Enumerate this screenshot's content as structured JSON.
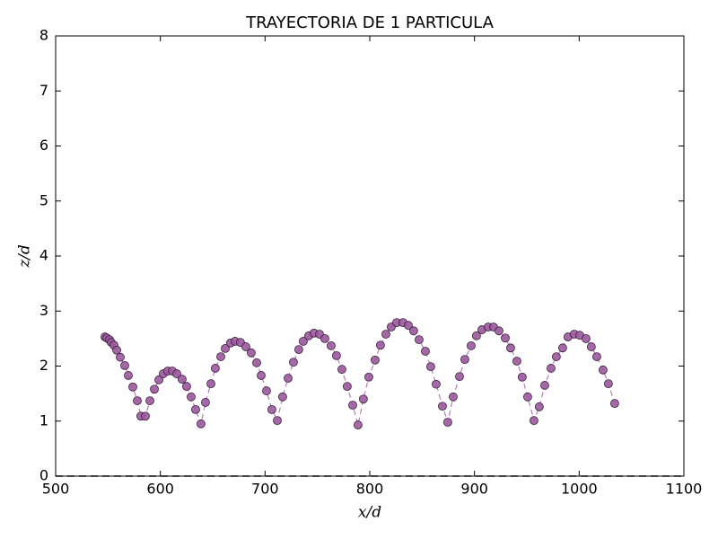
{
  "chart_data": {
    "type": "scatter",
    "title": "TRAYECTORIA DE 1 PARTICULA",
    "x_label": "x/d",
    "y_label": "z/d",
    "xlim": [
      500,
      1100
    ],
    "xticks": [
      500,
      600,
      700,
      800,
      900,
      1000,
      1100
    ],
    "ylim": [
      0,
      8
    ],
    "yticks": [
      0,
      1,
      2,
      3,
      4,
      5,
      6,
      7,
      8
    ],
    "hline": 0,
    "color": "#9c5a9e",
    "edge_color": "#3a1f3c",
    "line_color": "#b37fb5",
    "x": [
      547.1,
      548.9,
      551.4,
      553.1,
      555.7,
      558.3,
      561.7,
      566.0,
      569.4,
      573.7,
      578.0,
      581.4,
      585.7,
      590.0,
      594.3,
      598.6,
      602.8,
      607.1,
      611.4,
      615.7,
      620.8,
      625.1,
      629.4,
      633.7,
      638.8,
      643.1,
      648.3,
      652.5,
      657.7,
      662.0,
      667.1,
      671.4,
      676.5,
      681.7,
      686.8,
      692.0,
      696.3,
      701.4,
      706.5,
      711.7,
      716.8,
      722.0,
      727.1,
      732.2,
      736.5,
      741.7,
      746.8,
      752.0,
      757.1,
      763.1,
      768.2,
      773.4,
      778.5,
      783.7,
      788.8,
      793.9,
      799.1,
      805.1,
      810.2,
      815.4,
      820.5,
      825.7,
      831.7,
      836.8,
      841.9,
      847.1,
      853.1,
      858.2,
      863.4,
      869.4,
      874.5,
      879.7,
      885.7,
      890.8,
      896.8,
      901.9,
      907.1,
      913.1,
      918.2,
      923.4,
      929.4,
      934.5,
      940.5,
      945.6,
      950.8,
      956.8,
      961.9,
      967.1,
      973.1,
      978.2,
      984.2,
      989.3,
      995.3,
      1000.5,
      1006.5,
      1011.6,
      1016.8,
      1022.8,
      1027.9,
      1033.9
    ],
    "values": [
      2.53,
      2.51,
      2.48,
      2.43,
      2.38,
      2.29,
      2.16,
      2.01,
      1.83,
      1.62,
      1.37,
      1.09,
      1.09,
      1.37,
      1.58,
      1.75,
      1.86,
      1.91,
      1.91,
      1.86,
      1.76,
      1.63,
      1.44,
      1.21,
      0.95,
      1.34,
      1.68,
      1.96,
      2.17,
      2.32,
      2.42,
      2.45,
      2.43,
      2.35,
      2.24,
      2.06,
      1.83,
      1.55,
      1.21,
      1.01,
      1.44,
      1.78,
      2.07,
      2.3,
      2.45,
      2.55,
      2.6,
      2.58,
      2.5,
      2.37,
      2.19,
      1.94,
      1.63,
      1.29,
      0.93,
      1.4,
      1.8,
      2.11,
      2.38,
      2.58,
      2.71,
      2.79,
      2.79,
      2.74,
      2.64,
      2.48,
      2.27,
      1.99,
      1.67,
      1.27,
      0.98,
      1.44,
      1.81,
      2.12,
      2.37,
      2.55,
      2.66,
      2.71,
      2.71,
      2.64,
      2.51,
      2.33,
      2.09,
      1.8,
      1.44,
      1.01,
      1.26,
      1.65,
      1.96,
      2.17,
      2.33,
      2.53,
      2.58,
      2.56,
      2.5,
      2.35,
      2.17,
      1.93,
      1.68,
      1.32
    ]
  }
}
